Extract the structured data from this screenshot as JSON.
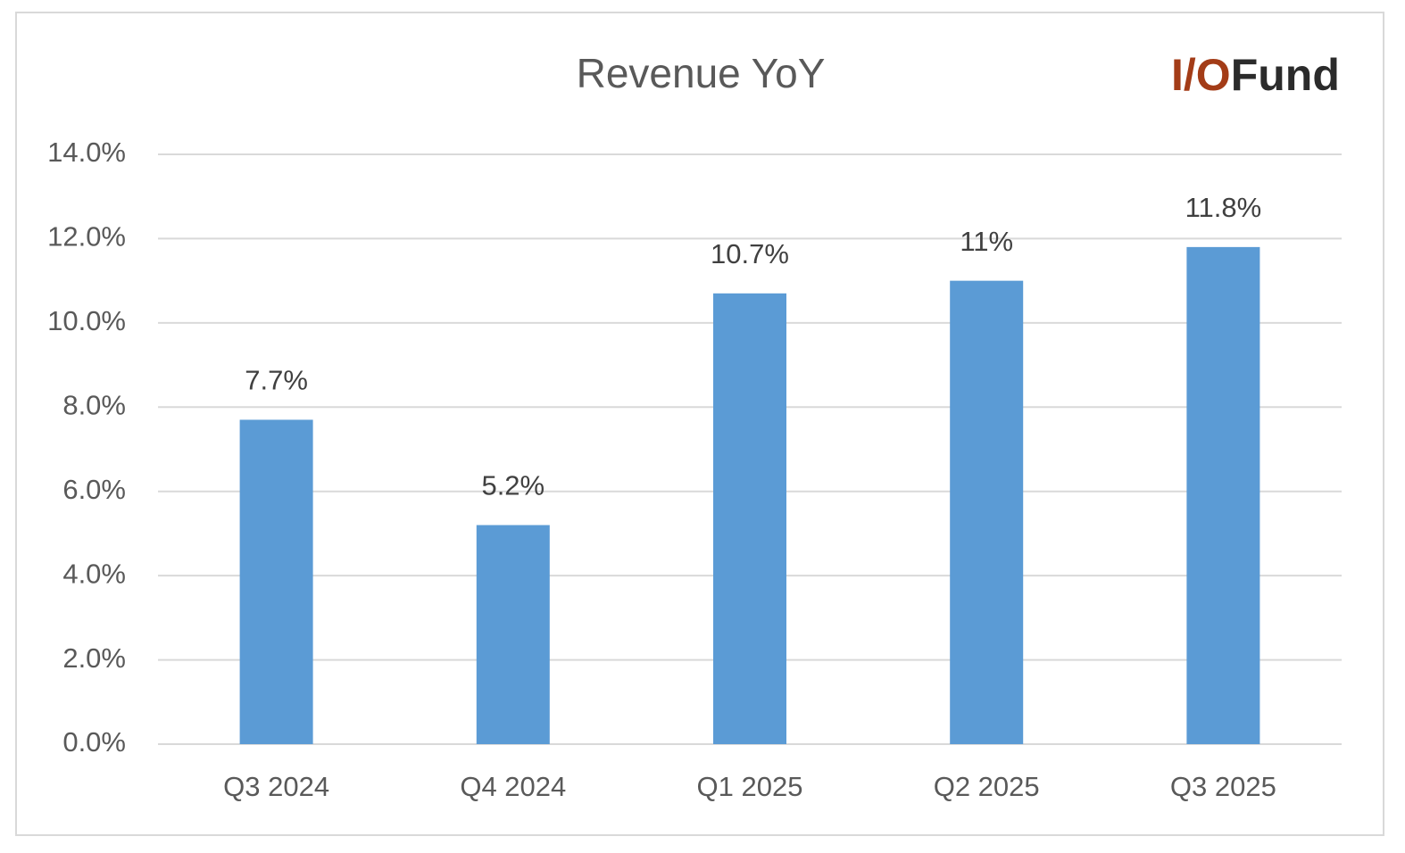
{
  "chart_data": {
    "type": "bar",
    "title": "Revenue YoY",
    "logo": [
      "I/O",
      "Fund"
    ],
    "categories": [
      "Q3 2024",
      "Q4 2024",
      "Q1 2025",
      "Q2 2025",
      "Q3 2025"
    ],
    "values": [
      7.7,
      5.2,
      10.7,
      11,
      11.8
    ],
    "value_labels": [
      "7.7%",
      "5.2%",
      "10.7%",
      "11%",
      "11.8%"
    ],
    "color": "#5b9bd5",
    "ylim": [
      0,
      14
    ],
    "yticks": [
      {
        "value": 0,
        "label": "0.0%"
      },
      {
        "value": 2,
        "label": "2.0%"
      },
      {
        "value": 4,
        "label": "4.0%"
      },
      {
        "value": 6,
        "label": "6.0%"
      },
      {
        "value": 8,
        "label": "8.0%"
      },
      {
        "value": 10,
        "label": "10.0%"
      },
      {
        "value": 12,
        "label": "12.0%"
      },
      {
        "value": 14,
        "label": "14.0%"
      }
    ],
    "grid": true
  }
}
